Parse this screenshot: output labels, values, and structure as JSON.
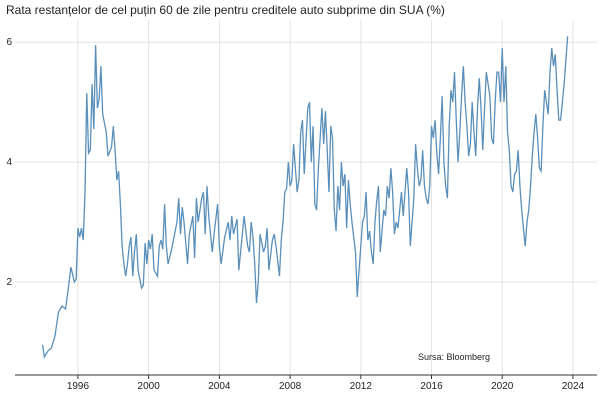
{
  "chart_data": {
    "type": "line",
    "title": "Rata restanțelor de cel puțin 60 de zile pentru creditele auto subprime din SUA (%)",
    "annotation": "Sursa: Bloomberg",
    "x": [
      1994.0,
      1994.1,
      1994.3,
      1994.5,
      1994.7,
      1994.9,
      1995.1,
      1995.3,
      1995.5,
      1995.6,
      1995.8,
      1995.9,
      1996.0,
      1996.1,
      1996.2,
      1996.3,
      1996.4,
      1996.5,
      1996.6,
      1996.7,
      1996.8,
      1996.9,
      1997.0,
      1997.1,
      1997.2,
      1997.3,
      1997.4,
      1997.6,
      1997.7,
      1997.9,
      1998.0,
      1998.1,
      1998.2,
      1998.3,
      1998.4,
      1998.5,
      1998.6,
      1998.7,
      1998.8,
      1998.9,
      1999.0,
      1999.1,
      1999.2,
      1999.3,
      1999.4,
      1999.5,
      1999.6,
      1999.7,
      1999.8,
      1999.9,
      2000.0,
      2000.1,
      2000.2,
      2000.3,
      2000.5,
      2000.6,
      2000.7,
      2000.8,
      2000.9,
      2001.0,
      2001.1,
      2001.3,
      2001.4,
      2001.6,
      2001.7,
      2001.8,
      2001.9,
      2002.0,
      2002.2,
      2002.3,
      2002.5,
      2002.6,
      2002.7,
      2002.8,
      2003.0,
      2003.1,
      2003.2,
      2003.3,
      2003.4,
      2003.6,
      2003.7,
      2003.9,
      2004.0,
      2004.1,
      2004.3,
      2004.5,
      2004.6,
      2004.7,
      2004.8,
      2005.0,
      2005.1,
      2005.3,
      2005.4,
      2005.6,
      2005.7,
      2005.8,
      2005.9,
      2006.0,
      2006.1,
      2006.2,
      2006.3,
      2006.5,
      2006.6,
      2006.7,
      2006.8,
      2007.0,
      2007.1,
      2007.2,
      2007.4,
      2007.5,
      2007.6,
      2007.7,
      2007.8,
      2007.9,
      2008.0,
      2008.1,
      2008.2,
      2008.4,
      2008.5,
      2008.6,
      2008.7,
      2008.8,
      2009.0,
      2009.1,
      2009.2,
      2009.3,
      2009.4,
      2009.5,
      2009.6,
      2009.7,
      2009.8,
      2009.9,
      2010.0,
      2010.1,
      2010.2,
      2010.3,
      2010.4,
      2010.5,
      2010.6,
      2010.7,
      2010.8,
      2010.9,
      2011.0,
      2011.1,
      2011.2,
      2011.3,
      2011.4,
      2011.5,
      2011.7,
      2011.8,
      2011.9,
      2012.0,
      2012.1,
      2012.2,
      2012.3,
      2012.4,
      2012.5,
      2012.6,
      2012.7,
      2012.8,
      2012.9,
      2013.0,
      2013.1,
      2013.3,
      2013.4,
      2013.5,
      2013.6,
      2013.7,
      2013.8,
      2013.9,
      2014.0,
      2014.1,
      2014.3,
      2014.4,
      2014.6,
      2014.7,
      2014.8,
      2014.9,
      2015.0,
      2015.1,
      2015.2,
      2015.3,
      2015.4,
      2015.5,
      2015.6,
      2015.7,
      2015.8,
      2015.9,
      2016.0,
      2016.1,
      2016.2,
      2016.3,
      2016.4,
      2016.5,
      2016.6,
      2016.7,
      2016.8,
      2016.9,
      2017.0,
      2017.1,
      2017.2,
      2017.3,
      2017.4,
      2017.5,
      2017.6,
      2017.7,
      2017.8,
      2017.9,
      2018.0,
      2018.1,
      2018.2,
      2018.3,
      2018.4,
      2018.5,
      2018.6,
      2018.7,
      2018.8,
      2018.9,
      2019.0,
      2019.1,
      2019.2,
      2019.3,
      2019.4,
      2019.5,
      2019.6,
      2019.7,
      2019.8,
      2019.9,
      2020.0,
      2020.1,
      2020.2,
      2020.3,
      2020.4,
      2020.5,
      2020.6,
      2020.7,
      2020.8,
      2020.9,
      2021.0,
      2021.1,
      2021.2,
      2021.3,
      2021.4,
      2021.5,
      2021.6,
      2021.7,
      2021.8,
      2021.9,
      2022.0,
      2022.1,
      2022.2,
      2022.3,
      2022.4,
      2022.5,
      2022.6,
      2022.7,
      2022.8,
      2022.9,
      2023.0,
      2023.1,
      2023.2,
      2023.3,
      2023.4,
      2023.5,
      2023.6,
      2023.7
    ],
    "series": [
      {
        "color": "#5a8fba",
        "values": [
          0.95,
          0.75,
          0.85,
          0.9,
          1.1,
          1.5,
          1.6,
          1.55,
          2.0,
          2.25,
          2.0,
          2.05,
          2.9,
          2.75,
          2.9,
          2.7,
          3.5,
          5.15,
          4.15,
          4.2,
          5.3,
          4.55,
          5.95,
          4.9,
          5.05,
          5.6,
          4.8,
          4.5,
          4.1,
          4.25,
          4.6,
          4.2,
          3.7,
          3.85,
          3.3,
          2.6,
          2.3,
          2.1,
          2.3,
          2.6,
          2.75,
          2.1,
          2.5,
          2.8,
          2.2,
          2.05,
          1.9,
          1.95,
          2.65,
          2.3,
          2.7,
          2.55,
          2.8,
          2.2,
          2.1,
          2.6,
          2.7,
          2.55,
          3.3,
          2.6,
          2.3,
          2.55,
          2.7,
          3.0,
          3.4,
          2.8,
          3.25,
          3.0,
          2.3,
          2.8,
          3.1,
          2.4,
          3.4,
          3.0,
          3.4,
          3.5,
          2.8,
          3.6,
          3.1,
          2.5,
          2.8,
          3.3,
          2.6,
          2.3,
          2.75,
          3.0,
          2.7,
          3.1,
          2.8,
          3.05,
          2.2,
          2.8,
          3.1,
          2.6,
          2.5,
          3.0,
          2.75,
          2.3,
          1.65,
          2.0,
          2.8,
          2.5,
          2.6,
          2.9,
          2.2,
          2.7,
          2.8,
          2.6,
          2.1,
          2.7,
          3.0,
          3.5,
          3.55,
          4.0,
          3.6,
          3.7,
          4.3,
          3.5,
          3.7,
          4.5,
          4.7,
          3.8,
          4.9,
          5.0,
          4.0,
          4.6,
          3.3,
          3.2,
          3.9,
          4.4,
          4.9,
          4.3,
          4.85,
          4.2,
          3.5,
          4.6,
          4.4,
          3.2,
          2.85,
          3.6,
          3.2,
          4.0,
          3.6,
          3.8,
          2.9,
          3.7,
          3.3,
          3.0,
          2.5,
          1.75,
          2.2,
          2.6,
          3.0,
          3.1,
          3.5,
          2.7,
          2.85,
          2.5,
          2.3,
          3.0,
          3.35,
          3.6,
          2.5,
          3.2,
          3.1,
          3.6,
          3.4,
          3.9,
          3.5,
          2.8,
          3.0,
          2.9,
          3.5,
          3.1,
          3.9,
          3.5,
          2.6,
          3.0,
          3.4,
          4.3,
          3.9,
          3.6,
          3.7,
          4.2,
          3.6,
          3.4,
          3.3,
          3.6,
          4.6,
          4.4,
          4.7,
          4.15,
          3.8,
          4.4,
          5.1,
          4.0,
          3.6,
          3.4,
          4.6,
          5.2,
          5.0,
          5.5,
          4.7,
          4.0,
          4.5,
          5.1,
          5.6,
          5.0,
          4.6,
          4.1,
          4.3,
          5.0,
          4.5,
          4.1,
          4.9,
          5.4,
          4.9,
          4.2,
          4.9,
          5.5,
          5.3,
          5.1,
          4.4,
          4.3,
          5.0,
          5.5,
          5.5,
          5.0,
          5.9,
          5.0,
          5.6,
          4.5,
          4.2,
          3.6,
          3.5,
          3.8,
          3.85,
          4.2,
          3.6,
          3.2,
          2.9,
          2.6,
          3.0,
          3.2,
          3.6,
          4.1,
          4.5,
          4.8,
          4.4,
          3.9,
          3.85,
          4.6,
          5.2,
          5.0,
          4.8,
          5.5,
          5.9,
          5.6,
          5.8,
          5.2,
          4.7,
          4.7,
          5.0,
          5.3,
          5.7,
          6.1
        ]
      }
    ],
    "xlim": [
      1992.44,
      2025.36
    ],
    "xticks": [
      1996,
      2000,
      2004,
      2008,
      2012,
      2016,
      2020,
      2024
    ],
    "ylim": [
      0.45,
      6.37
    ],
    "yticks": [
      2,
      4,
      6
    ],
    "grid": true
  }
}
